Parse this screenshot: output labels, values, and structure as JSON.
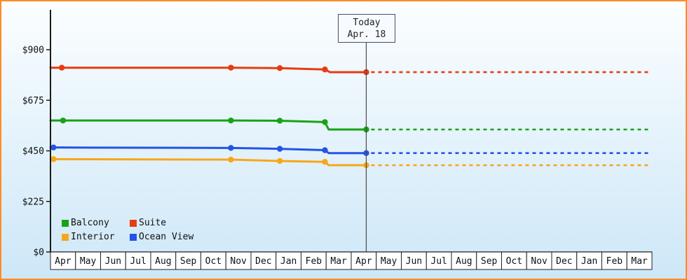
{
  "palette": {
    "frame_border": "#ff8c26",
    "bg_top": "#fcfeff",
    "bg_bottom": "#cde7f8",
    "axis": "#1a1a1a",
    "month_cell_bg": "#ffffff",
    "month_cell_border": "#222222",
    "today_line": "#4a4a4a",
    "text": "#111111"
  },
  "chart_data": {
    "type": "line",
    "title": "",
    "x_months": [
      "Apr",
      "May",
      "Jun",
      "Jul",
      "Aug",
      "Sep",
      "Oct",
      "Nov",
      "Dec",
      "Jan",
      "Feb",
      "Mar",
      "Apr",
      "May",
      "Jun",
      "Jul",
      "Aug",
      "Sep",
      "Oct",
      "Nov",
      "Dec",
      "Jan",
      "Feb",
      "Mar"
    ],
    "y_tick_labels": [
      "$0",
      "$225",
      "$450",
      "$675",
      "$900"
    ],
    "y_tick_values": [
      0,
      225,
      450,
      675,
      900
    ],
    "y_axis_max": 900,
    "today_x": 12.6,
    "today_label": {
      "line1": "Today",
      "line2": "Apr. 18"
    },
    "legend_order": [
      "Balcony",
      "Suite",
      "Interior",
      "Ocean View"
    ],
    "series": [
      {
        "name": "Suite",
        "color": "#e63c11",
        "line": [
          [
            0,
            820
          ],
          [
            7.2,
            820
          ],
          [
            9.15,
            818
          ],
          [
            10.95,
            812
          ],
          [
            11.15,
            800
          ],
          [
            12.6,
            800
          ]
        ],
        "markers": [
          [
            0.45,
            820
          ],
          [
            7.2,
            820
          ],
          [
            9.15,
            818
          ],
          [
            10.95,
            812
          ],
          [
            12.6,
            800
          ]
        ],
        "projected_value": 800
      },
      {
        "name": "Balcony",
        "color": "#17a317",
        "line": [
          [
            0,
            585
          ],
          [
            7.2,
            585
          ],
          [
            9.15,
            584
          ],
          [
            10.95,
            578
          ],
          [
            11.1,
            545
          ],
          [
            12.6,
            545
          ]
        ],
        "markers": [
          [
            0.5,
            585
          ],
          [
            7.2,
            585
          ],
          [
            9.15,
            584
          ],
          [
            10.95,
            578
          ],
          [
            12.6,
            545
          ]
        ],
        "projected_value": 545
      },
      {
        "name": "Ocean View",
        "color": "#2453e6",
        "line": [
          [
            0,
            465
          ],
          [
            7.2,
            463
          ],
          [
            9.15,
            459
          ],
          [
            10.95,
            453
          ],
          [
            11.1,
            440
          ],
          [
            12.6,
            440
          ]
        ],
        "markers": [
          [
            0.12,
            465
          ],
          [
            7.2,
            463
          ],
          [
            9.15,
            459
          ],
          [
            10.95,
            453
          ],
          [
            12.6,
            440
          ]
        ],
        "projected_value": 440
      },
      {
        "name": "Interior",
        "color": "#f6a718",
        "line": [
          [
            0,
            413
          ],
          [
            7.2,
            411
          ],
          [
            9.15,
            405
          ],
          [
            10.95,
            401
          ],
          [
            11.1,
            386
          ],
          [
            12.6,
            386
          ]
        ],
        "markers": [
          [
            0.12,
            413
          ],
          [
            7.2,
            411
          ],
          [
            9.15,
            405
          ],
          [
            10.95,
            401
          ],
          [
            12.6,
            386
          ]
        ],
        "projected_value": 386
      }
    ]
  }
}
